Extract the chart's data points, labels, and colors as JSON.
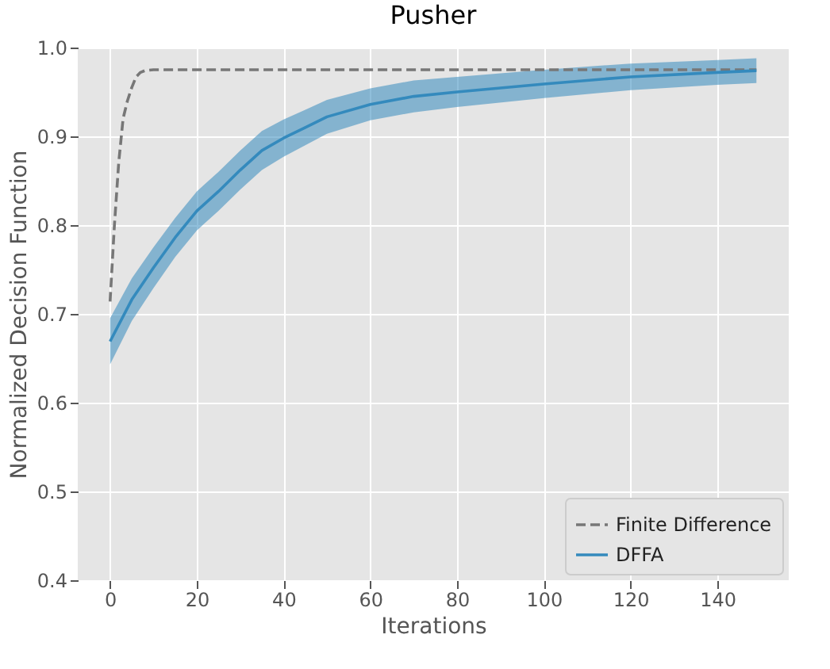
{
  "chart_data": {
    "type": "line",
    "title": "Pusher",
    "xlabel": "Iterations",
    "ylabel": "Normalized Decision Function",
    "xlim": [
      -7.45,
      156.45
    ],
    "ylim": [
      0.4,
      1.0
    ],
    "xticks": [
      0,
      20,
      40,
      60,
      80,
      100,
      120,
      140
    ],
    "yticks": [
      0.4,
      0.5,
      0.6,
      0.7,
      0.8,
      0.9,
      {
        "value": 1,
        "label": "1.0"
      }
    ],
    "grid": true,
    "legend": "bottom right",
    "series": [
      {
        "name": "Finite Difference",
        "color": "#777777",
        "line_style": "dashed",
        "x": [
          0,
          1,
          2,
          3,
          4,
          5,
          6,
          7,
          8,
          10,
          149
        ],
        "values": [
          0.714,
          0.8,
          0.871,
          0.92,
          0.94,
          0.955,
          0.967,
          0.972,
          0.974,
          0.975,
          0.975
        ]
      },
      {
        "name": "DFFA",
        "color": "#348abd",
        "line_style": "solid",
        "x": [
          0,
          5,
          10,
          15,
          20,
          25,
          30,
          35,
          40,
          45,
          50,
          60,
          70,
          80,
          100,
          120,
          140,
          149
        ],
        "values": [
          0.669,
          0.716,
          0.752,
          0.786,
          0.816,
          0.838,
          0.862,
          0.884,
          0.898,
          0.91,
          0.922,
          0.936,
          0.945,
          0.95,
          0.959,
          0.967,
          0.972,
          0.974
        ],
        "lower": [
          0.643,
          0.692,
          0.729,
          0.764,
          0.794,
          0.816,
          0.84,
          0.862,
          0.877,
          0.89,
          0.903,
          0.918,
          0.927,
          0.933,
          0.943,
          0.952,
          0.958,
          0.96
        ],
        "upper": [
          0.695,
          0.74,
          0.775,
          0.808,
          0.838,
          0.86,
          0.884,
          0.906,
          0.919,
          0.93,
          0.941,
          0.954,
          0.963,
          0.967,
          0.975,
          0.982,
          0.986,
          0.988
        ]
      }
    ]
  }
}
